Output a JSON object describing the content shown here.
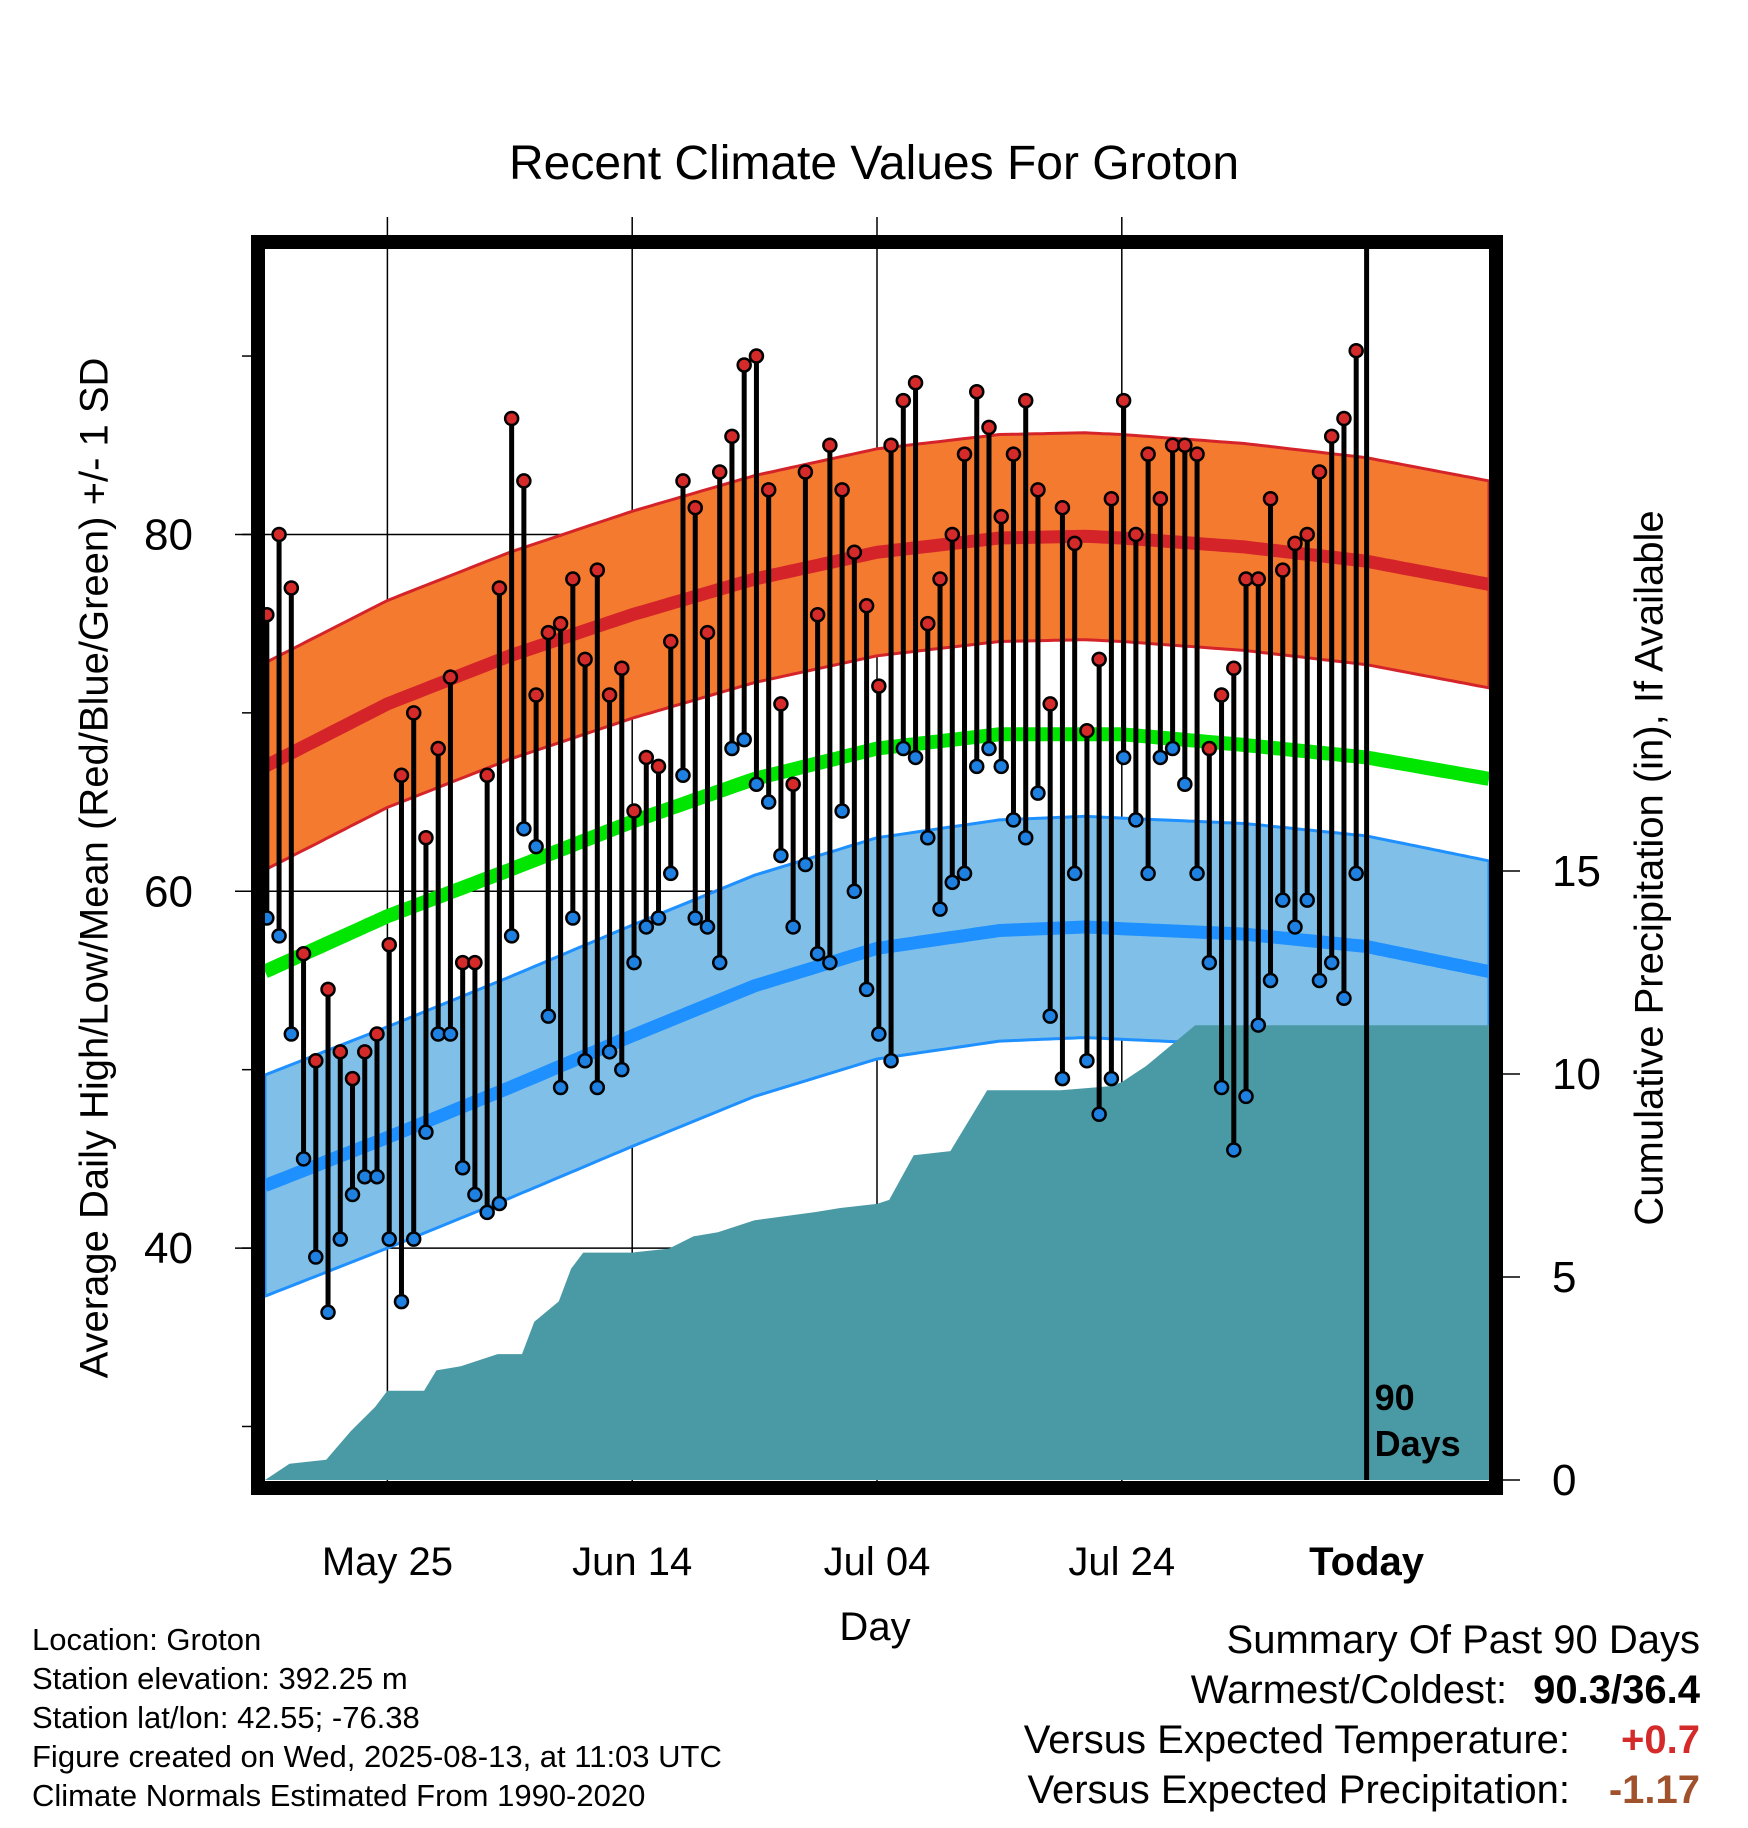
{
  "title": "Recent Climate Values For Groton",
  "ylabel_left": "Average Daily High/Low/Mean (Red/Blue/Green) +/- 1 SD",
  "ylabel_right": "Cumulative Precipitation (in), If Available",
  "xlabel": "Day",
  "marker_label": "90\nDays",
  "info": [
    "Location: Groton",
    "Station elevation: 392.25 m",
    "Station lat/lon: 42.55; -76.38",
    "Figure created on Wed, 2025-08-13, at 11:03 UTC",
    "Climate Normals Estimated From 1990-2020"
  ],
  "summary": {
    "heading": "Summary Of Past 90 Days",
    "warm_cold_label": "Warmest/Coldest:",
    "warm_cold_value": "90.3/36.4",
    "temp_label": "Versus Expected Temperature:",
    "temp_value": "+0.7",
    "precip_label": "Versus Expected Precipitation:",
    "precip_value": "-1.17"
  },
  "colors": {
    "high_band": "#f47a30",
    "high_mean": "#d4242a",
    "low_band": "#80c0e8",
    "low_mean": "#1e90ff",
    "mean_line": "#00e600",
    "precip": "#4a9aa5",
    "high_dot": "#d42a2a",
    "low_dot": "#1e80e0",
    "temp_positive": "#d42a2a",
    "precip_negative": "#a0522d"
  },
  "chart_data": {
    "type": "line",
    "x_ticks": [
      {
        "day": 10,
        "label": "May 25"
      },
      {
        "day": 30,
        "label": "Jun 14"
      },
      {
        "day": 50,
        "label": "Jul 04"
      },
      {
        "day": 70,
        "label": "Jul 24"
      },
      {
        "day": 90,
        "label": "Today"
      }
    ],
    "xlim": [
      0,
      100
    ],
    "ylim_temp": [
      27,
      96
    ],
    "y_ticks_temp": [
      40,
      60,
      80
    ],
    "ylim_precip": [
      0,
      30
    ],
    "y_ticks_precip": [
      0,
      5,
      10,
      15
    ],
    "normals_day": [
      0,
      10,
      20,
      30,
      40,
      50,
      60,
      67,
      70,
      80,
      90,
      100
    ],
    "normal_high": [
      67.0,
      70.5,
      73.2,
      75.5,
      77.5,
      79.0,
      79.8,
      79.9,
      79.8,
      79.3,
      78.5,
      77.2
    ],
    "high_sd": 5.8,
    "normal_low": [
      43.5,
      46.2,
      49.0,
      51.9,
      54.7,
      56.8,
      57.8,
      58.0,
      57.9,
      57.6,
      56.9,
      55.5
    ],
    "low_sd": 6.2,
    "normal_mean": [
      55.5,
      58.6,
      61.2,
      63.9,
      66.3,
      68.0,
      68.8,
      68.8,
      68.8,
      68.2,
      67.5,
      66.3
    ],
    "daily_high": [
      75.5,
      80.0,
      77.0,
      56.5,
      50.5,
      54.5,
      51.0,
      49.5,
      51.0,
      52.0,
      57.0,
      66.5,
      70.0,
      63.0,
      68.0,
      72.0,
      56.0,
      56.0,
      66.5,
      77.0,
      86.5,
      83.0,
      71.0,
      74.5,
      75.0,
      77.5,
      73.0,
      78.0,
      71.0,
      72.5,
      64.5,
      67.5,
      67.0,
      74.0,
      83.0,
      81.5,
      74.5,
      83.5,
      85.5,
      89.5,
      90.0,
      82.5,
      70.5,
      66.0,
      83.5,
      75.5,
      85.0,
      82.5,
      79.0,
      76.0,
      71.5,
      85.0,
      87.5,
      88.5,
      75.0,
      77.5,
      80.0,
      84.5,
      88.0,
      86.0,
      81.0,
      84.5,
      87.5,
      82.5,
      70.5,
      81.5,
      79.5,
      69.0,
      73.0,
      82.0,
      87.5,
      80.0,
      84.5,
      82.0,
      85.0,
      85.0,
      84.5,
      68.0,
      71.0,
      72.5,
      77.5,
      77.5,
      82.0,
      78.0,
      79.5,
      80.0,
      83.5,
      85.5,
      86.5,
      90.3
    ],
    "daily_low": [
      58.5,
      57.5,
      52.0,
      45.0,
      39.5,
      36.4,
      40.5,
      43.0,
      44.0,
      44.0,
      40.5,
      37.0,
      40.5,
      46.5,
      52.0,
      52.0,
      44.5,
      43.0,
      42.0,
      42.5,
      57.5,
      63.5,
      62.5,
      53.0,
      49.0,
      58.5,
      50.5,
      49.0,
      51.0,
      50.0,
      56.0,
      58.0,
      58.5,
      61.0,
      66.5,
      58.5,
      58.0,
      56.0,
      68.0,
      68.5,
      66.0,
      65.0,
      62.0,
      58.0,
      61.5,
      56.5,
      56.0,
      64.5,
      60.0,
      54.5,
      52.0,
      50.5,
      68.0,
      67.5,
      63.0,
      59.0,
      60.5,
      61.0,
      67.0,
      68.0,
      67.0,
      64.0,
      63.0,
      65.5,
      53.0,
      49.5,
      61.0,
      50.5,
      47.5,
      49.5,
      67.5,
      64.0,
      61.0,
      67.5,
      68.0,
      66.0,
      61.0,
      56.0,
      49.0,
      45.5,
      48.5,
      52.5,
      55.0,
      59.5,
      58.0,
      59.5,
      55.0,
      56.0,
      54.0,
      61.0
    ],
    "precip_day": [
      0,
      2,
      5,
      7,
      9,
      10,
      13,
      14,
      16,
      19,
      21,
      22,
      24,
      25,
      26,
      30,
      33,
      35,
      37,
      40,
      45,
      47,
      50,
      51,
      53,
      56,
      59,
      65,
      69,
      70,
      72,
      76,
      80,
      100
    ],
    "precip_cum": [
      0.0,
      0.4,
      0.5,
      1.2,
      1.8,
      2.2,
      2.2,
      2.7,
      2.8,
      3.1,
      3.1,
      3.9,
      4.4,
      5.2,
      5.6,
      5.6,
      5.7,
      6.0,
      6.1,
      6.4,
      6.6,
      6.7,
      6.8,
      6.9,
      8.0,
      8.1,
      9.6,
      9.6,
      9.7,
      9.8,
      10.2,
      11.2,
      11.2,
      11.2
    ]
  }
}
